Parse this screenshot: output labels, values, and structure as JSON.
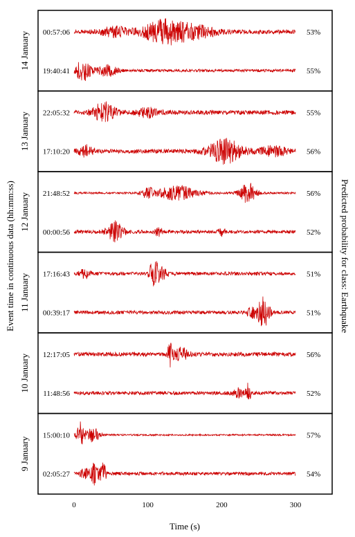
{
  "chart_data": {
    "type": "line",
    "title": "",
    "xlabel": "Time (s)",
    "ylabel_left": "Event time in continuous data (hh:mm:ss)",
    "ylabel_right": "Predicted probability for class: Earthquake",
    "xlim": [
      0,
      300
    ],
    "xticks": [
      0,
      100,
      200,
      300
    ],
    "xtick_labels": [
      "0",
      "100",
      "200",
      "300"
    ],
    "waveform_color": "#cc0000",
    "groups": [
      {
        "day": "14 January",
        "traces": [
          {
            "time": "00:57:06",
            "probability": "53%",
            "base_amp": 3,
            "bursts": [
              [
                125,
                60,
                17
              ],
              [
                55,
                40,
                6
              ],
              [
                170,
                50,
                7
              ]
            ]
          },
          {
            "time": "19:40:41",
            "probability": "55%",
            "base_amp": 2,
            "bursts": [
              [
                12,
                22,
                15
              ],
              [
                45,
                25,
                8
              ]
            ]
          }
        ]
      },
      {
        "day": "13 January",
        "traces": [
          {
            "time": "22:05:32",
            "probability": "55%",
            "base_amp": 3,
            "bursts": [
              [
                40,
                30,
                14
              ],
              [
                100,
                30,
                6
              ]
            ]
          },
          {
            "time": "17:10:20",
            "probability": "56%",
            "base_amp": 3,
            "bursts": [
              [
                205,
                45,
                17
              ],
              [
                15,
                20,
                8
              ],
              [
                270,
                40,
                6
              ]
            ]
          }
        ]
      },
      {
        "day": "12 January",
        "traces": [
          {
            "time": "21:48:52",
            "probability": "56%",
            "base_amp": 1.5,
            "bursts": [
              [
                140,
                55,
                10
              ],
              [
                235,
                22,
                15
              ],
              [
                100,
                15,
                8
              ]
            ]
          },
          {
            "time": "00:00:56",
            "probability": "52%",
            "base_amp": 2.5,
            "bursts": [
              [
                55,
                22,
                14
              ],
              [
                200,
                8,
                6
              ],
              [
                115,
                10,
                5
              ]
            ]
          }
        ]
      },
      {
        "day": "11 January",
        "traces": [
          {
            "time": "17:16:43",
            "probability": "51%",
            "base_amp": 2.5,
            "bursts": [
              [
                108,
                12,
                18
              ],
              [
                118,
                18,
                8
              ],
              [
                15,
                15,
                6
              ]
            ]
          },
          {
            "time": "00:39:17",
            "probability": "51%",
            "base_amp": 2.5,
            "bursts": [
              [
                258,
                14,
                20
              ],
              [
                245,
                20,
                8
              ]
            ]
          }
        ]
      },
      {
        "day": "10 January",
        "traces": [
          {
            "time": "12:17:05",
            "probability": "56%",
            "base_amp": 3,
            "bursts": [
              [
                130,
                8,
                16
              ],
              [
                145,
                20,
                8
              ]
            ]
          },
          {
            "time": "11:48:56",
            "probability": "52%",
            "base_amp": 2.5,
            "bursts": [
              [
                236,
                6,
                14
              ],
              [
                222,
                15,
                6
              ]
            ]
          }
        ]
      },
      {
        "day": "9 January",
        "traces": [
          {
            "time": "15:00:10",
            "probability": "57%",
            "base_amp": 1.2,
            "bursts": [
              [
                8,
                10,
                18
              ],
              [
                25,
                20,
                10
              ]
            ]
          },
          {
            "time": "02:05:27",
            "probability": "54%",
            "base_amp": 2.5,
            "bursts": [
              [
                28,
                12,
                15
              ],
              [
                40,
                8,
                14
              ],
              [
                15,
                15,
                6
              ]
            ]
          }
        ]
      }
    ]
  }
}
